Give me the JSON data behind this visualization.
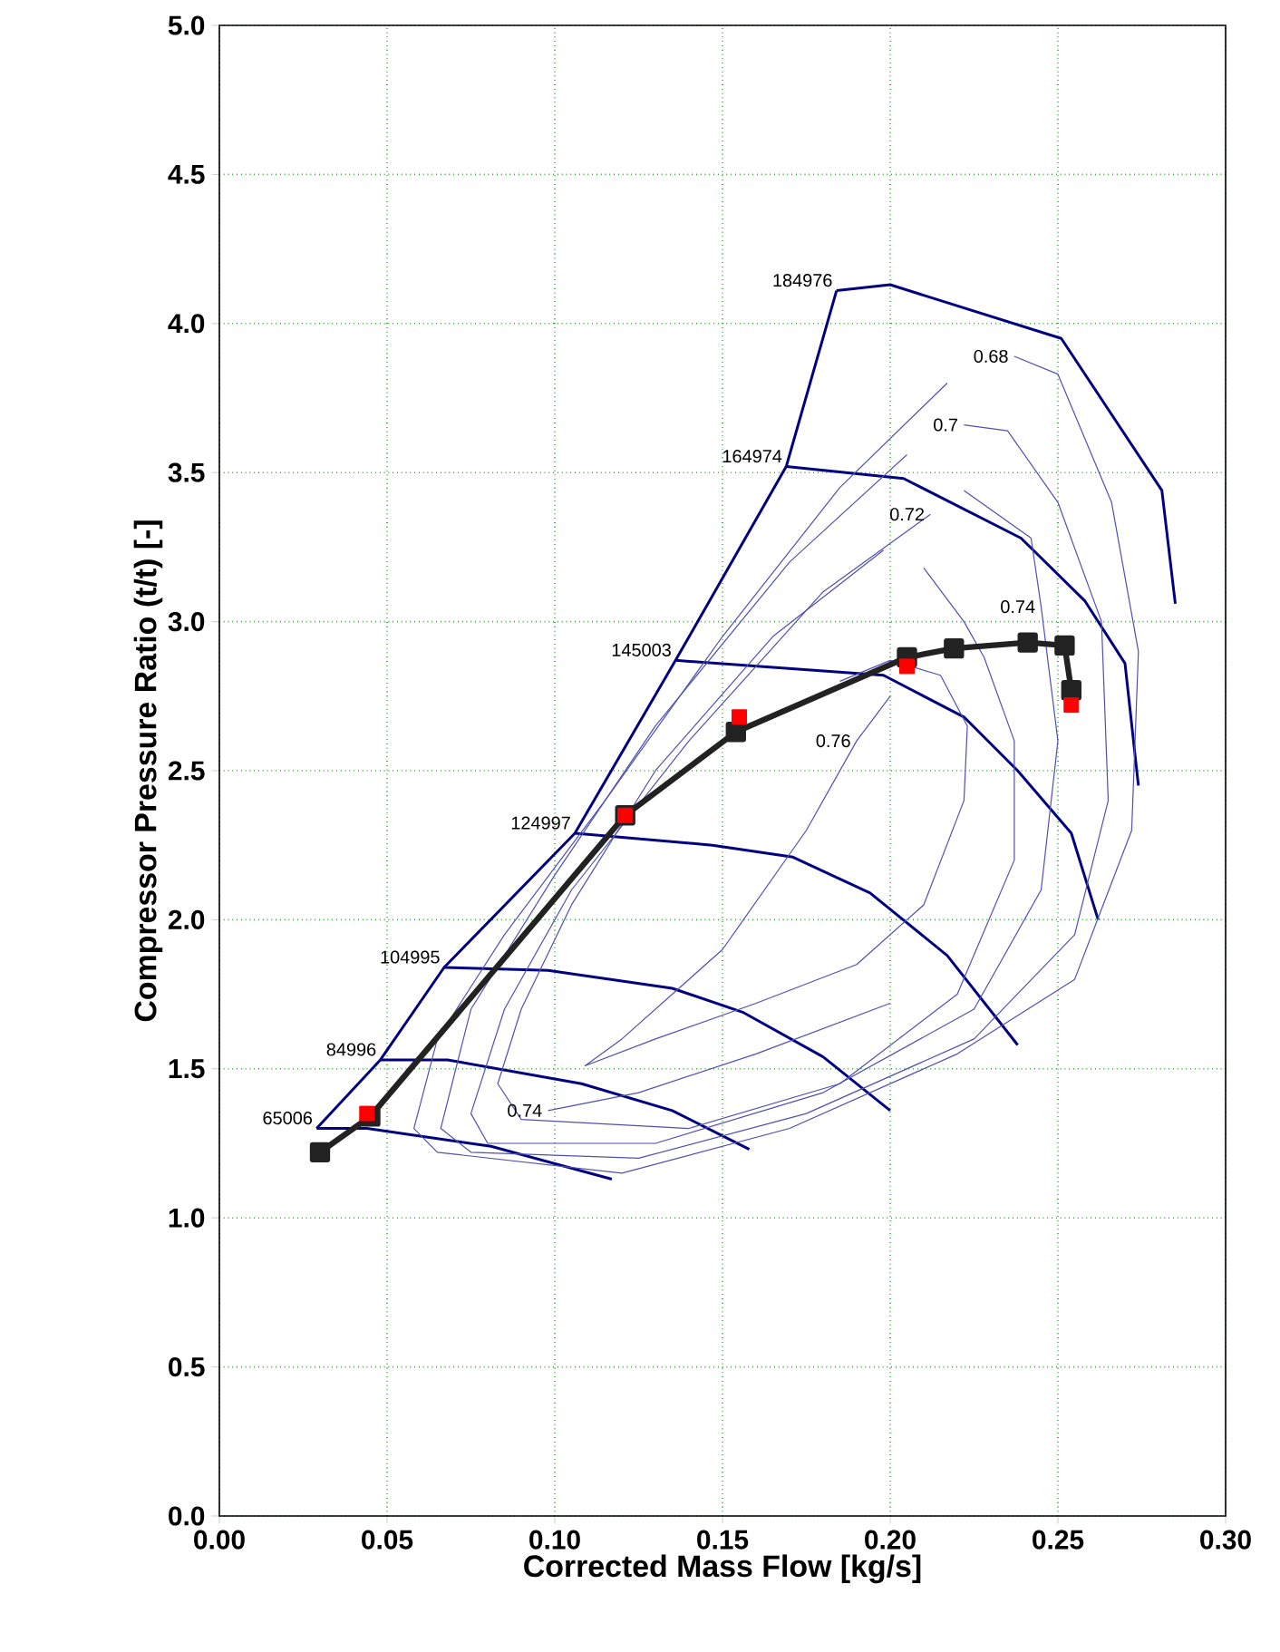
{
  "chart_data": {
    "type": "line",
    "xlabel": "Corrected Mass Flow [kg/s]",
    "ylabel": "Compressor Pressure Ratio (t/t) [-]",
    "xlim": [
      0,
      0.3
    ],
    "ylim": [
      0,
      5
    ],
    "xticks": [
      {
        "value": 0,
        "label": "0.00"
      },
      {
        "value": 0.05,
        "label": "0.05"
      },
      {
        "value": 0.1,
        "label": "0.10"
      },
      {
        "value": 0.15,
        "label": "0.15"
      },
      {
        "value": 0.2,
        "label": "0.20"
      },
      {
        "value": 0.25,
        "label": "0.25"
      },
      {
        "value": 0.3,
        "label": "0.30"
      }
    ],
    "yticks": [
      {
        "value": 0,
        "label": "0.0"
      },
      {
        "value": 0.5,
        "label": "0.5"
      },
      {
        "value": 1,
        "label": "1.0"
      },
      {
        "value": 1.5,
        "label": "1.5"
      },
      {
        "value": 2,
        "label": "2.0"
      },
      {
        "value": 2.5,
        "label": "2.5"
      },
      {
        "value": 3,
        "label": "3.0"
      },
      {
        "value": 3.5,
        "label": "3.5"
      },
      {
        "value": 4,
        "label": "4.0"
      },
      {
        "value": 4.5,
        "label": "4.5"
      },
      {
        "value": 5,
        "label": "5.0"
      }
    ],
    "grid": true,
    "series": [
      {
        "name": "65006",
        "color": "#000080",
        "x": [
          0.029,
          0.044,
          0.081,
          0.117
        ],
        "values": [
          1.3,
          1.3,
          1.24,
          1.13
        ]
      },
      {
        "name": "84996",
        "color": "#000080",
        "x": [
          0.048,
          0.068,
          0.108,
          0.135,
          0.158
        ],
        "values": [
          1.53,
          1.53,
          1.45,
          1.36,
          1.23
        ]
      },
      {
        "name": "104995",
        "color": "#000080",
        "x": [
          0.067,
          0.098,
          0.135,
          0.156,
          0.18,
          0.2
        ],
        "values": [
          1.84,
          1.83,
          1.77,
          1.69,
          1.54,
          1.36
        ]
      },
      {
        "name": "124997",
        "color": "#000080",
        "x": [
          0.106,
          0.147,
          0.171,
          0.194,
          0.217,
          0.238
        ],
        "values": [
          2.29,
          2.25,
          2.21,
          2.09,
          1.88,
          1.58
        ]
      },
      {
        "name": "145003",
        "color": "#000080",
        "x": [
          0.136,
          0.198,
          0.222,
          0.238,
          0.254,
          0.262
        ],
        "values": [
          2.87,
          2.82,
          2.68,
          2.5,
          2.29,
          2.0
        ]
      },
      {
        "name": "164974",
        "color": "#000080",
        "x": [
          0.169,
          0.204,
          0.239,
          0.258,
          0.27,
          0.274
        ],
        "values": [
          3.52,
          3.48,
          3.28,
          3.07,
          2.86,
          2.45
        ]
      },
      {
        "name": "184976",
        "color": "#000080",
        "x": [
          0.184,
          0.2,
          0.251,
          0.281,
          0.285
        ],
        "values": [
          4.11,
          4.13,
          3.95,
          3.44,
          3.06
        ]
      },
      {
        "color": "#000080",
        "x": [
          0.029,
          0.048,
          0.067,
          0.106,
          0.136,
          0.169,
          0.184
        ],
        "values": [
          1.3,
          1.53,
          1.84,
          2.29,
          2.87,
          3.52,
          4.11
        ]
      },
      {
        "color": "#5050b0",
        "x": [
          0.217,
          0.185,
          0.15,
          0.115,
          0.085,
          0.065,
          0.058,
          0.065,
          0.12,
          0.17,
          0.22,
          0.255,
          0.272,
          0.274,
          0.266,
          0.25,
          0.237
        ],
        "values": [
          3.8,
          3.45,
          2.95,
          2.4,
          1.95,
          1.6,
          1.3,
          1.22,
          1.15,
          1.3,
          1.55,
          1.8,
          2.3,
          2.9,
          3.4,
          3.83,
          3.89
        ]
      },
      {
        "color": "#5050b0",
        "x": [
          0.205,
          0.17,
          0.13,
          0.1,
          0.075,
          0.066,
          0.075,
          0.125,
          0.175,
          0.225,
          0.255,
          0.265,
          0.263,
          0.25,
          0.235,
          0.222
        ],
        "values": [
          3.56,
          3.2,
          2.65,
          2.15,
          1.7,
          1.3,
          1.22,
          1.2,
          1.35,
          1.6,
          1.95,
          2.4,
          3.0,
          3.4,
          3.64,
          3.66
        ]
      },
      {
        "color": "#5050b0",
        "x": [
          0.212,
          0.18,
          0.14,
          0.105,
          0.085,
          0.075,
          0.08,
          0.13,
          0.18,
          0.225,
          0.245,
          0.25,
          0.245,
          0.242,
          0.222
        ],
        "values": [
          3.36,
          3.1,
          2.6,
          2.1,
          1.7,
          1.35,
          1.25,
          1.25,
          1.42,
          1.7,
          2.1,
          2.6,
          3.05,
          3.28,
          3.44
        ]
      },
      {
        "color": "#5050b0",
        "x": [
          0.198,
          0.165,
          0.13,
          0.105,
          0.09,
          0.083,
          0.09,
          0.14,
          0.185,
          0.22,
          0.237,
          0.237,
          0.228,
          0.222,
          0.21
        ],
        "values": [
          3.24,
          2.95,
          2.5,
          2.05,
          1.7,
          1.45,
          1.33,
          1.3,
          1.45,
          1.75,
          2.2,
          2.6,
          2.88,
          3.0,
          3.18
        ]
      },
      {
        "color": "#5050b0",
        "x": [
          0.185,
          0.2,
          0.215,
          0.223,
          0.222,
          0.21,
          0.19,
          0.16,
          0.13,
          0.109,
          0.12,
          0.15,
          0.175,
          0.19,
          0.2
        ],
        "values": [
          2.8,
          2.87,
          2.82,
          2.65,
          2.4,
          2.05,
          1.85,
          1.72,
          1.6,
          1.51,
          1.6,
          1.9,
          2.3,
          2.6,
          2.75
        ]
      },
      {
        "color": "#5050b0",
        "x": [
          0.098,
          0.125,
          0.16,
          0.2
        ],
        "values": [
          1.36,
          1.42,
          1.55,
          1.72
        ]
      },
      {
        "color": "#222222",
        "marker": "square",
        "x": [
          0.03,
          0.045,
          0.121,
          0.154,
          0.205,
          0.219,
          0.241,
          0.252,
          0.254
        ],
        "values": [
          1.22,
          1.34,
          2.35,
          2.63,
          2.88,
          2.91,
          2.93,
          2.92,
          2.77
        ]
      },
      {
        "type": "scatter",
        "color": "#ff0000",
        "marker": "square",
        "x": [
          0.044,
          0.121,
          0.155,
          0.205,
          0.254
        ],
        "values": [
          1.35,
          2.35,
          2.68,
          2.85,
          2.72
        ]
      }
    ],
    "annotations": [
      {
        "text": "0.68",
        "x": 0.237,
        "y": 3.89
      },
      {
        "text": "0.7",
        "x": 0.222,
        "y": 3.66
      },
      {
        "text": "0.72",
        "x": 0.212,
        "y": 3.36
      },
      {
        "text": "0.74",
        "x": 0.245,
        "y": 3.05
      },
      {
        "text": "0.76",
        "x": 0.19,
        "y": 2.6
      },
      {
        "text": "0.74",
        "x": 0.098,
        "y": 1.36
      }
    ]
  }
}
